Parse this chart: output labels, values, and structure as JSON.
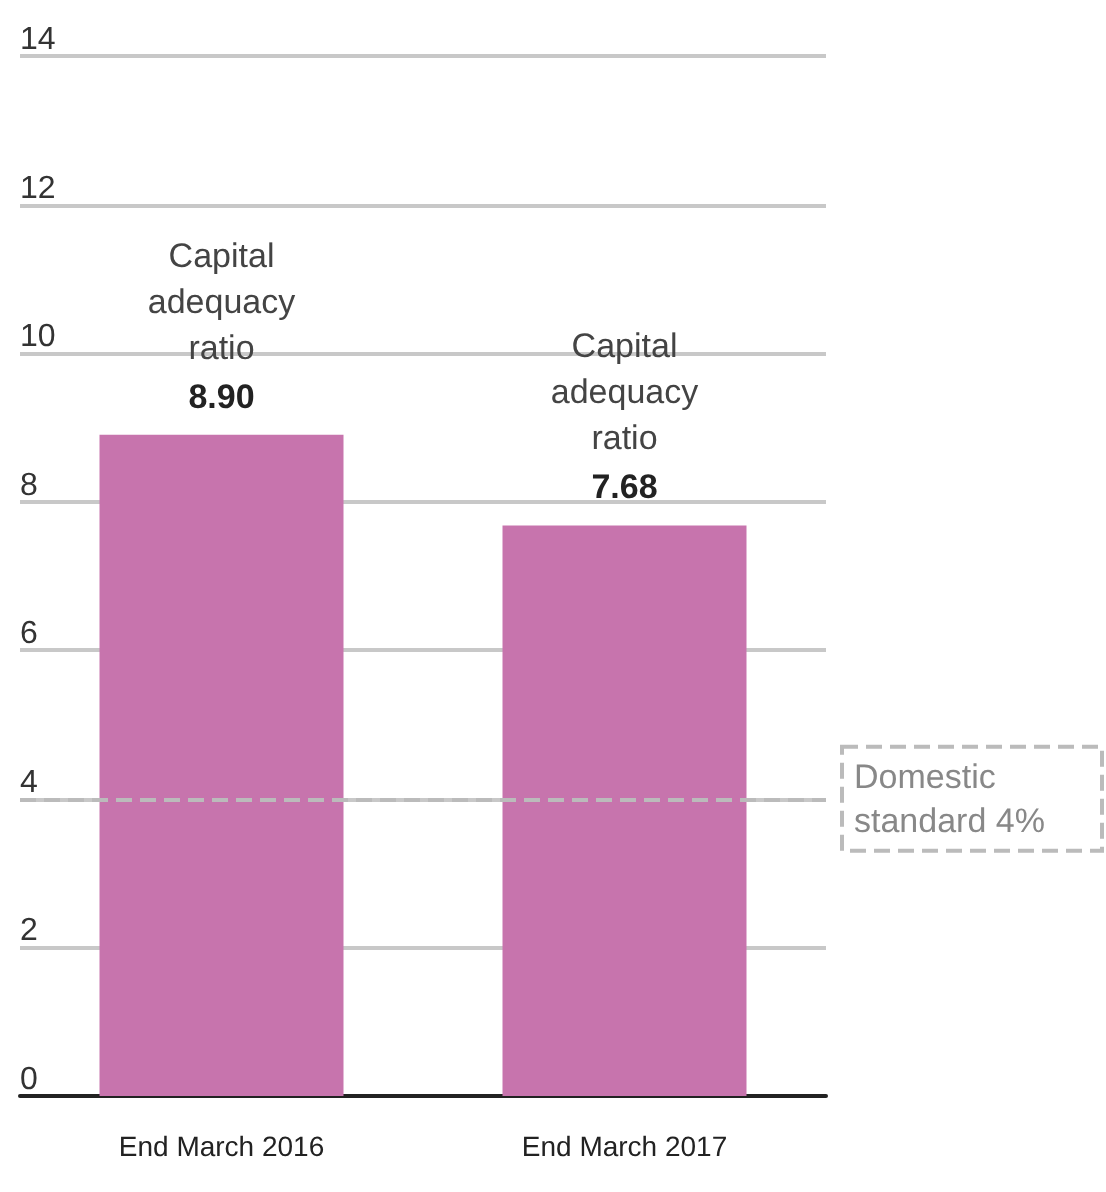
{
  "chart_data": {
    "type": "bar",
    "categories": [
      "End March 2016",
      "End March 2017"
    ],
    "series": [
      {
        "name": "Capital adequacy ratio",
        "color": "#c774ad",
        "values": [
          8.9,
          7.68
        ],
        "value_labels": [
          "8.90",
          "7.68"
        ]
      }
    ],
    "ylim": [
      0,
      14
    ],
    "yticks": [
      0,
      2,
      4,
      6,
      8,
      10,
      12,
      14
    ],
    "grid": "y",
    "legend": false,
    "ref_lines": [
      {
        "axis": "y",
        "value": 4,
        "label": "Domestic standard 4%",
        "line_style": "dashed",
        "color": "#bbbbbb"
      }
    ]
  }
}
